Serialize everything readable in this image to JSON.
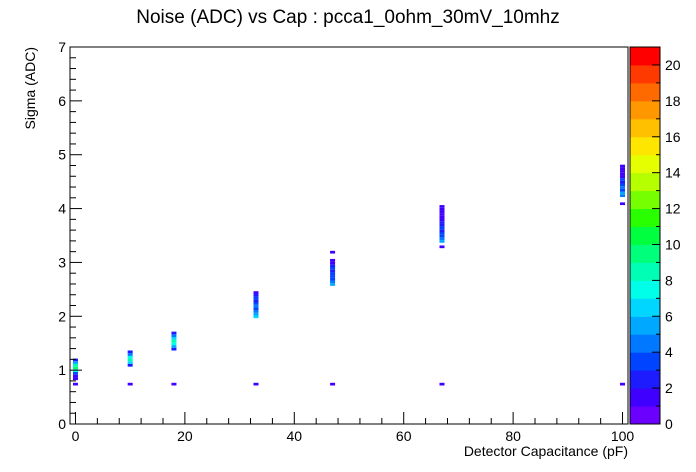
{
  "chart_data": {
    "type": "heatmap",
    "title": "Noise (ADC) vs Cap : pcca1_0ohm_30mV_10mhz",
    "xlabel": "Detector Capacitance (pF)",
    "ylabel": "Sigma (ADC)",
    "xlim": [
      -1,
      101
    ],
    "ylim": [
      0,
      7
    ],
    "x_ticks": [
      0,
      20,
      40,
      60,
      80,
      100
    ],
    "y_ticks": [
      0,
      1,
      2,
      3,
      4,
      5,
      6,
      7
    ],
    "x_tick_labels": [
      "0",
      "20",
      "40",
      "60",
      "80",
      "100"
    ],
    "y_tick_labels": [
      "0",
      "1",
      "2",
      "3",
      "4",
      "5",
      "6",
      "7"
    ],
    "colorbar": {
      "min": 0,
      "max": 21,
      "tick_values": [
        0,
        2,
        4,
        6,
        8,
        10,
        12,
        14,
        16,
        18,
        20
      ],
      "tick_labels": [
        "0",
        "2",
        "4",
        "6",
        "8",
        "10",
        "12",
        "14",
        "16",
        "18",
        "20"
      ]
    },
    "grid": false,
    "legend": "none",
    "series": [
      {
        "x": 0,
        "cells": [
          {
            "y": 0.74,
            "count": 1
          },
          {
            "y": 0.84,
            "count": 1
          },
          {
            "y": 0.89,
            "count": 1
          },
          {
            "y": 0.94,
            "count": 3
          },
          {
            "y": 0.99,
            "count": 7
          },
          {
            "y": 1.04,
            "count": 9
          },
          {
            "y": 1.09,
            "count": 8
          },
          {
            "y": 1.14,
            "count": 5
          },
          {
            "y": 1.19,
            "count": 2
          }
        ]
      },
      {
        "x": 10,
        "cells": [
          {
            "y": 0.74,
            "count": 1
          },
          {
            "y": 1.09,
            "count": 2
          },
          {
            "y": 1.14,
            "count": 6
          },
          {
            "y": 1.19,
            "count": 8
          },
          {
            "y": 1.24,
            "count": 7
          },
          {
            "y": 1.29,
            "count": 4
          },
          {
            "y": 1.34,
            "count": 2
          }
        ]
      },
      {
        "x": 18,
        "cells": [
          {
            "y": 0.74,
            "count": 1
          },
          {
            "y": 1.39,
            "count": 2
          },
          {
            "y": 1.44,
            "count": 5
          },
          {
            "y": 1.49,
            "count": 7
          },
          {
            "y": 1.54,
            "count": 8
          },
          {
            "y": 1.59,
            "count": 6
          },
          {
            "y": 1.64,
            "count": 4
          },
          {
            "y": 1.69,
            "count": 2
          }
        ]
      },
      {
        "x": 33,
        "cells": [
          {
            "y": 0.74,
            "count": 1
          },
          {
            "y": 1.99,
            "count": 6
          },
          {
            "y": 2.04,
            "count": 5
          },
          {
            "y": 2.09,
            "count": 4
          },
          {
            "y": 2.14,
            "count": 3
          },
          {
            "y": 2.19,
            "count": 4
          },
          {
            "y": 2.24,
            "count": 3
          },
          {
            "y": 2.29,
            "count": 2
          },
          {
            "y": 2.34,
            "count": 3
          },
          {
            "y": 2.39,
            "count": 2
          },
          {
            "y": 2.44,
            "count": 1
          }
        ]
      },
      {
        "x": 47,
        "cells": [
          {
            "y": 0.74,
            "count": 1
          },
          {
            "y": 2.59,
            "count": 5
          },
          {
            "y": 2.64,
            "count": 4
          },
          {
            "y": 2.69,
            "count": 3
          },
          {
            "y": 2.74,
            "count": 3
          },
          {
            "y": 2.79,
            "count": 3
          },
          {
            "y": 2.84,
            "count": 2
          },
          {
            "y": 2.89,
            "count": 3
          },
          {
            "y": 2.94,
            "count": 2
          },
          {
            "y": 2.99,
            "count": 1
          },
          {
            "y": 3.04,
            "count": 1
          },
          {
            "y": 3.19,
            "count": 1
          }
        ]
      },
      {
        "x": 67,
        "cells": [
          {
            "y": 0.74,
            "count": 1
          },
          {
            "y": 3.29,
            "count": 1
          },
          {
            "y": 3.39,
            "count": 5
          },
          {
            "y": 3.44,
            "count": 4
          },
          {
            "y": 3.49,
            "count": 3
          },
          {
            "y": 3.54,
            "count": 3
          },
          {
            "y": 3.59,
            "count": 2
          },
          {
            "y": 3.64,
            "count": 3
          },
          {
            "y": 3.69,
            "count": 2
          },
          {
            "y": 3.74,
            "count": 2
          },
          {
            "y": 3.79,
            "count": 1
          },
          {
            "y": 3.84,
            "count": 1
          },
          {
            "y": 3.89,
            "count": 1
          },
          {
            "y": 3.94,
            "count": 1
          },
          {
            "y": 3.99,
            "count": 1
          },
          {
            "y": 4.04,
            "count": 1
          }
        ]
      },
      {
        "x": 100,
        "cells": [
          {
            "y": 0.74,
            "count": 1
          },
          {
            "y": 4.09,
            "count": 1
          },
          {
            "y": 4.24,
            "count": 4
          },
          {
            "y": 4.29,
            "count": 5
          },
          {
            "y": 4.34,
            "count": 3
          },
          {
            "y": 4.39,
            "count": 4
          },
          {
            "y": 4.44,
            "count": 3
          },
          {
            "y": 4.49,
            "count": 2
          },
          {
            "y": 4.54,
            "count": 3
          },
          {
            "y": 4.59,
            "count": 1
          },
          {
            "y": 4.64,
            "count": 1
          },
          {
            "y": 4.69,
            "count": 1
          },
          {
            "y": 4.74,
            "count": 1
          },
          {
            "y": 4.79,
            "count": 1
          }
        ]
      }
    ]
  }
}
